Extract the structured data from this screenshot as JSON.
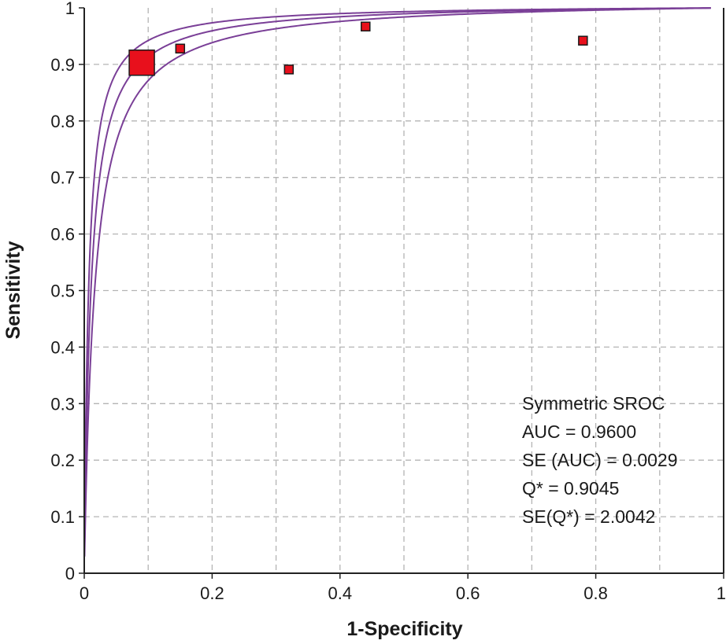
{
  "chart_data": {
    "type": "scatter",
    "xlabel": "1-Specificity",
    "ylabel": "Sensitivity",
    "xlim": [
      0,
      1
    ],
    "ylim": [
      0,
      1
    ],
    "x_ticks": [
      "0",
      "0.2",
      "0.4",
      "0.6",
      "0.8",
      "1"
    ],
    "y_ticks": [
      "0",
      "0.1",
      "0.2",
      "0.3",
      "0.4",
      "0.5",
      "0.6",
      "0.7",
      "0.8",
      "0.9",
      "1"
    ],
    "grid": true,
    "points": [
      {
        "x": 0.09,
        "y": 0.903,
        "weight": "large"
      },
      {
        "x": 0.15,
        "y": 0.928,
        "weight": "small"
      },
      {
        "x": 0.32,
        "y": 0.891,
        "weight": "small"
      },
      {
        "x": 0.44,
        "y": 0.967,
        "weight": "small"
      },
      {
        "x": 0.78,
        "y": 0.942,
        "weight": "small"
      }
    ],
    "curves": {
      "type": "Symmetric SROC",
      "dor_center": 94.7,
      "dor_lower": 61,
      "dor_upper": 147
    },
    "annotations": [
      "Symmetric SROC",
      "AUC = 0.9600",
      "SE (AUC) = 0.0029",
      "Q* = 0.9045",
      "SE(Q*) = 2.0042"
    ],
    "colors": {
      "point_fill": "#e8101c",
      "curve": "#7a3f97",
      "grid": "#b4b4b4"
    }
  }
}
